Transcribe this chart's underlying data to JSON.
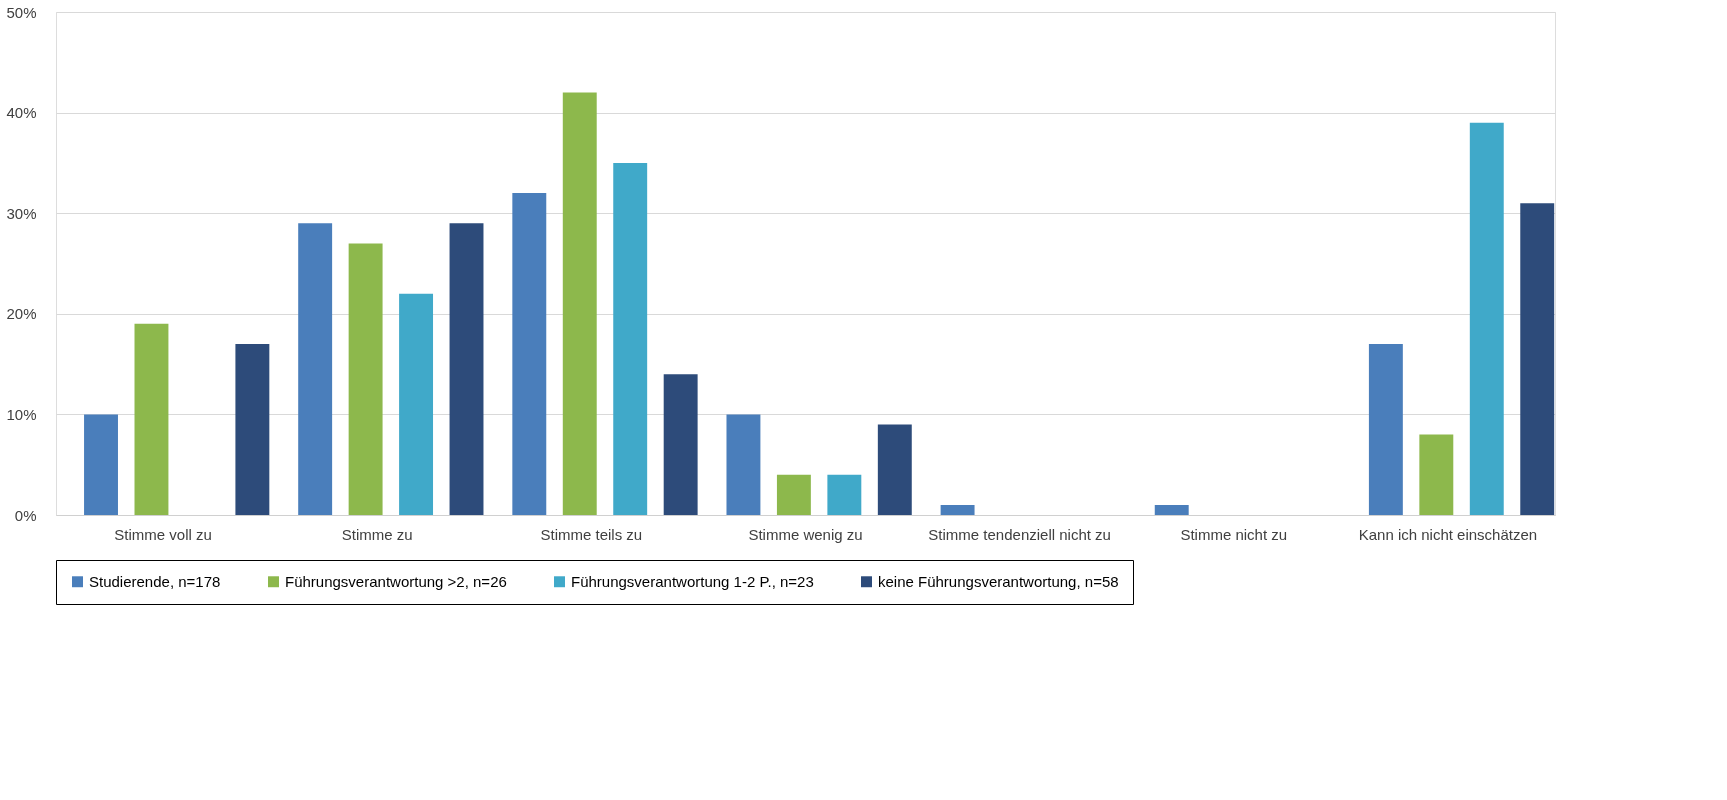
{
  "chart_data": {
    "type": "bar",
    "categories": [
      "Stimme voll zu",
      "Stimme zu",
      "Stimme teils zu",
      "Stimme wenig zu",
      "Stimme tendenziell nicht zu",
      "Stimme nicht zu",
      "Kann ich nicht einschätzen"
    ],
    "series": [
      {
        "name": "Studierende, n=178",
        "color": "#4a7ebb",
        "values": [
          10,
          29,
          32,
          10,
          1,
          1,
          17
        ]
      },
      {
        "name": "Führungsverantwortung >2, n=26",
        "color": "#8db84c",
        "values": [
          19,
          27,
          42,
          4,
          null,
          null,
          8
        ]
      },
      {
        "name": "Führungsverantwortung 1-2 P., n=23",
        "color": "#40a9c9",
        "values": [
          null,
          22,
          35,
          4,
          null,
          null,
          39
        ]
      },
      {
        "name": "keine Führungsverantwortung, n=58",
        "color": "#2d4b7a",
        "values": [
          17,
          29,
          14,
          9,
          null,
          null,
          31
        ]
      }
    ],
    "ylim": [
      0,
      50
    ],
    "yticks": [
      {
        "value": 0,
        "label": "0%"
      },
      {
        "value": 10,
        "label": "10%"
      },
      {
        "value": 20,
        "label": "20%"
      },
      {
        "value": 30,
        "label": "30%"
      },
      {
        "value": 40,
        "label": "40%"
      },
      {
        "value": 50,
        "label": "50%"
      }
    ],
    "grid": "y",
    "legend": "bottom"
  }
}
